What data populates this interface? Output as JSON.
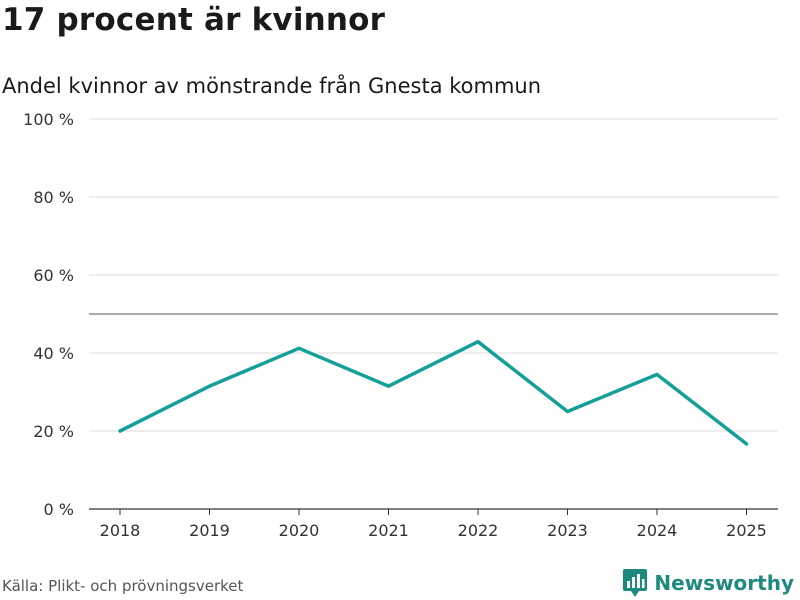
{
  "title": "17 procent är kvinnor",
  "subtitle": "Andel kvinnor av mönstrande från Gnesta kommun",
  "source": "Källa: Plikt- och prövningsverket",
  "brand": "Newsworthy",
  "colors": {
    "line": "#14a098",
    "grid": "#dddddd",
    "reference": "#777777",
    "axis": "#333333",
    "brand": "#1e8a7e"
  },
  "chart_data": {
    "type": "line",
    "title": "17 procent är kvinnor",
    "subtitle": "Andel kvinnor av mönstrande från Gnesta kommun",
    "xlabel": "",
    "ylabel": "",
    "x": [
      "2018",
      "2019",
      "2020",
      "2021",
      "2022",
      "2023",
      "2024",
      "2025"
    ],
    "series": [
      {
        "name": "Andel kvinnor",
        "values": [
          20,
          31.5,
          41.2,
          31.5,
          42.9,
          25,
          34.5,
          16.7
        ]
      }
    ],
    "ylim": [
      0,
      100
    ],
    "yticks": [
      0,
      20,
      40,
      60,
      80,
      100
    ],
    "ytick_labels": [
      "0 %",
      "20 %",
      "40 %",
      "60 %",
      "80 %",
      "100 %"
    ],
    "reference_line": 50,
    "grid": true
  }
}
